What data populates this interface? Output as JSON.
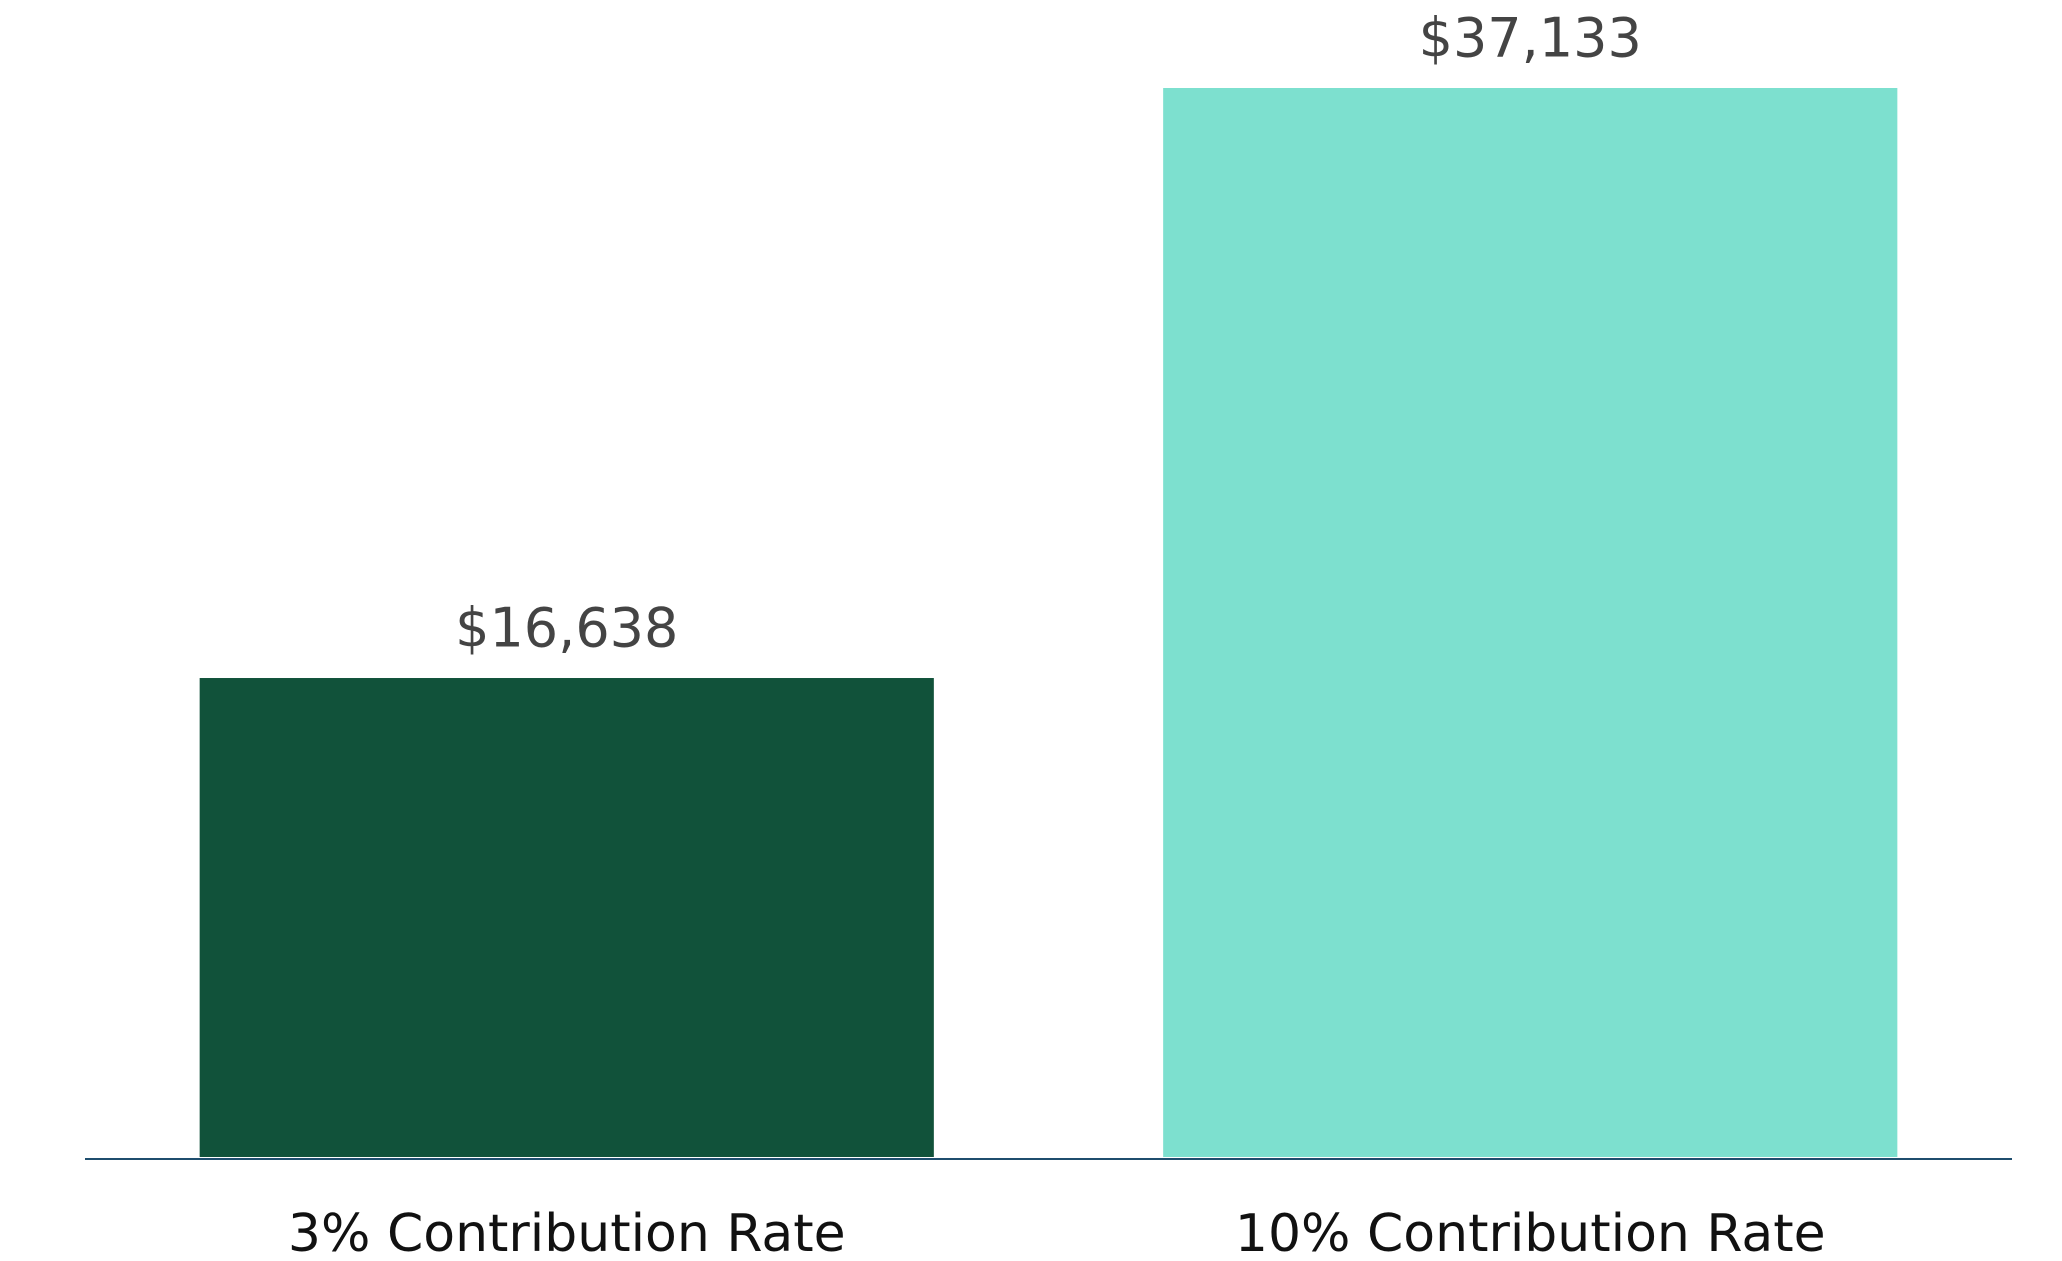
{
  "chart_data": {
    "type": "bar",
    "categories": [
      "3% Contribution Rate",
      "10% Contribution Rate"
    ],
    "values": [
      16638,
      37133
    ],
    "value_labels": [
      "$16,638",
      "$37,133"
    ],
    "colors": [
      "#11523a",
      "#7de0cf"
    ],
    "axis_color": "#1f4e6e"
  }
}
